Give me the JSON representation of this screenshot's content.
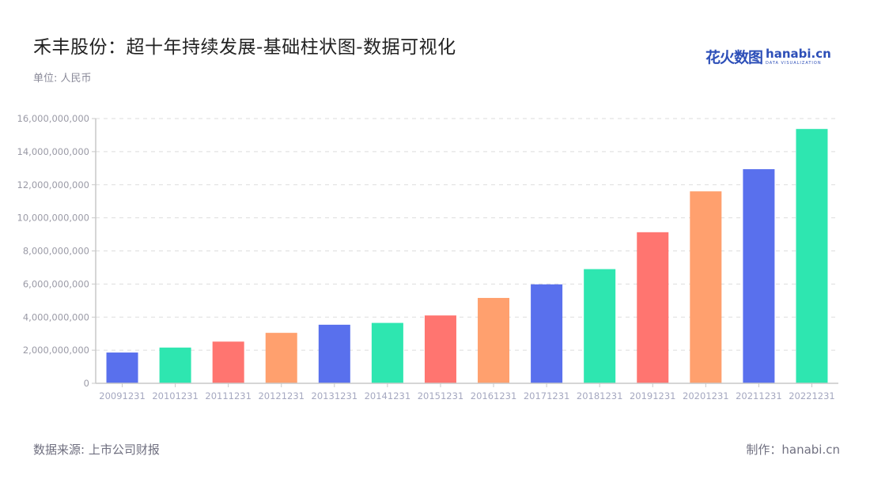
{
  "header": {
    "title": "禾丰股份：超十年持续发展-基础柱状图-数据可视化",
    "unit": "单位: 人民币"
  },
  "logo": {
    "cn_text": "花火数图",
    "en_text": "hanabi.cn",
    "tagline": "DATA VISUALIZATION"
  },
  "footer": {
    "source": "数据来源: 上市公司财报",
    "credit": "制作：hanabi.cn"
  },
  "colors": {
    "blue": "#5970ED",
    "green": "#2EE6B0",
    "red": "#FF7570",
    "orange": "#FFA06E",
    "grid": "#dddddd",
    "axis": "#c8c8c8"
  },
  "chart_data": {
    "type": "bar",
    "title": "禾丰股份：超十年持续发展-基础柱状图-数据可视化",
    "xlabel": "",
    "ylabel": "单位: 人民币",
    "ylim": [
      0,
      16000000000
    ],
    "grid": true,
    "legend": null,
    "yticks": [
      "0",
      "2,000,000,000",
      "4,000,000,000",
      "6,000,000,000",
      "8,000,000,000",
      "10,000,000,000",
      "12,000,000,000",
      "14,000,000,000",
      "16,000,000,000"
    ],
    "categories": [
      "20091231",
      "20101231",
      "20111231",
      "20121231",
      "20131231",
      "20141231",
      "20151231",
      "20161231",
      "20171231",
      "20181231",
      "20191231",
      "20201231",
      "20211231",
      "20221231"
    ],
    "values": [
      1860000000,
      2160000000,
      2520000000,
      3050000000,
      3540000000,
      3650000000,
      4100000000,
      5160000000,
      5980000000,
      6900000000,
      9130000000,
      11600000000,
      12940000000,
      15370000000
    ],
    "bar_colors": [
      "#5970ED",
      "#2EE6B0",
      "#FF7570",
      "#FFA06E",
      "#5970ED",
      "#2EE6B0",
      "#FF7570",
      "#FFA06E",
      "#5970ED",
      "#2EE6B0",
      "#FF7570",
      "#FFA06E",
      "#5970ED",
      "#2EE6B0"
    ]
  }
}
